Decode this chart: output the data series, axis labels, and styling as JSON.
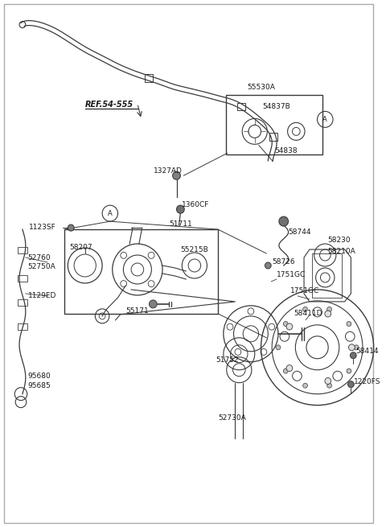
{
  "bg_color": "#ffffff",
  "line_color": "#3a3a3a",
  "text_color": "#1a1a1a",
  "fig_width": 4.8,
  "fig_height": 6.55,
  "dpi": 100,
  "xlim": [
    0,
    480
  ],
  "ylim": [
    0,
    655
  ]
}
